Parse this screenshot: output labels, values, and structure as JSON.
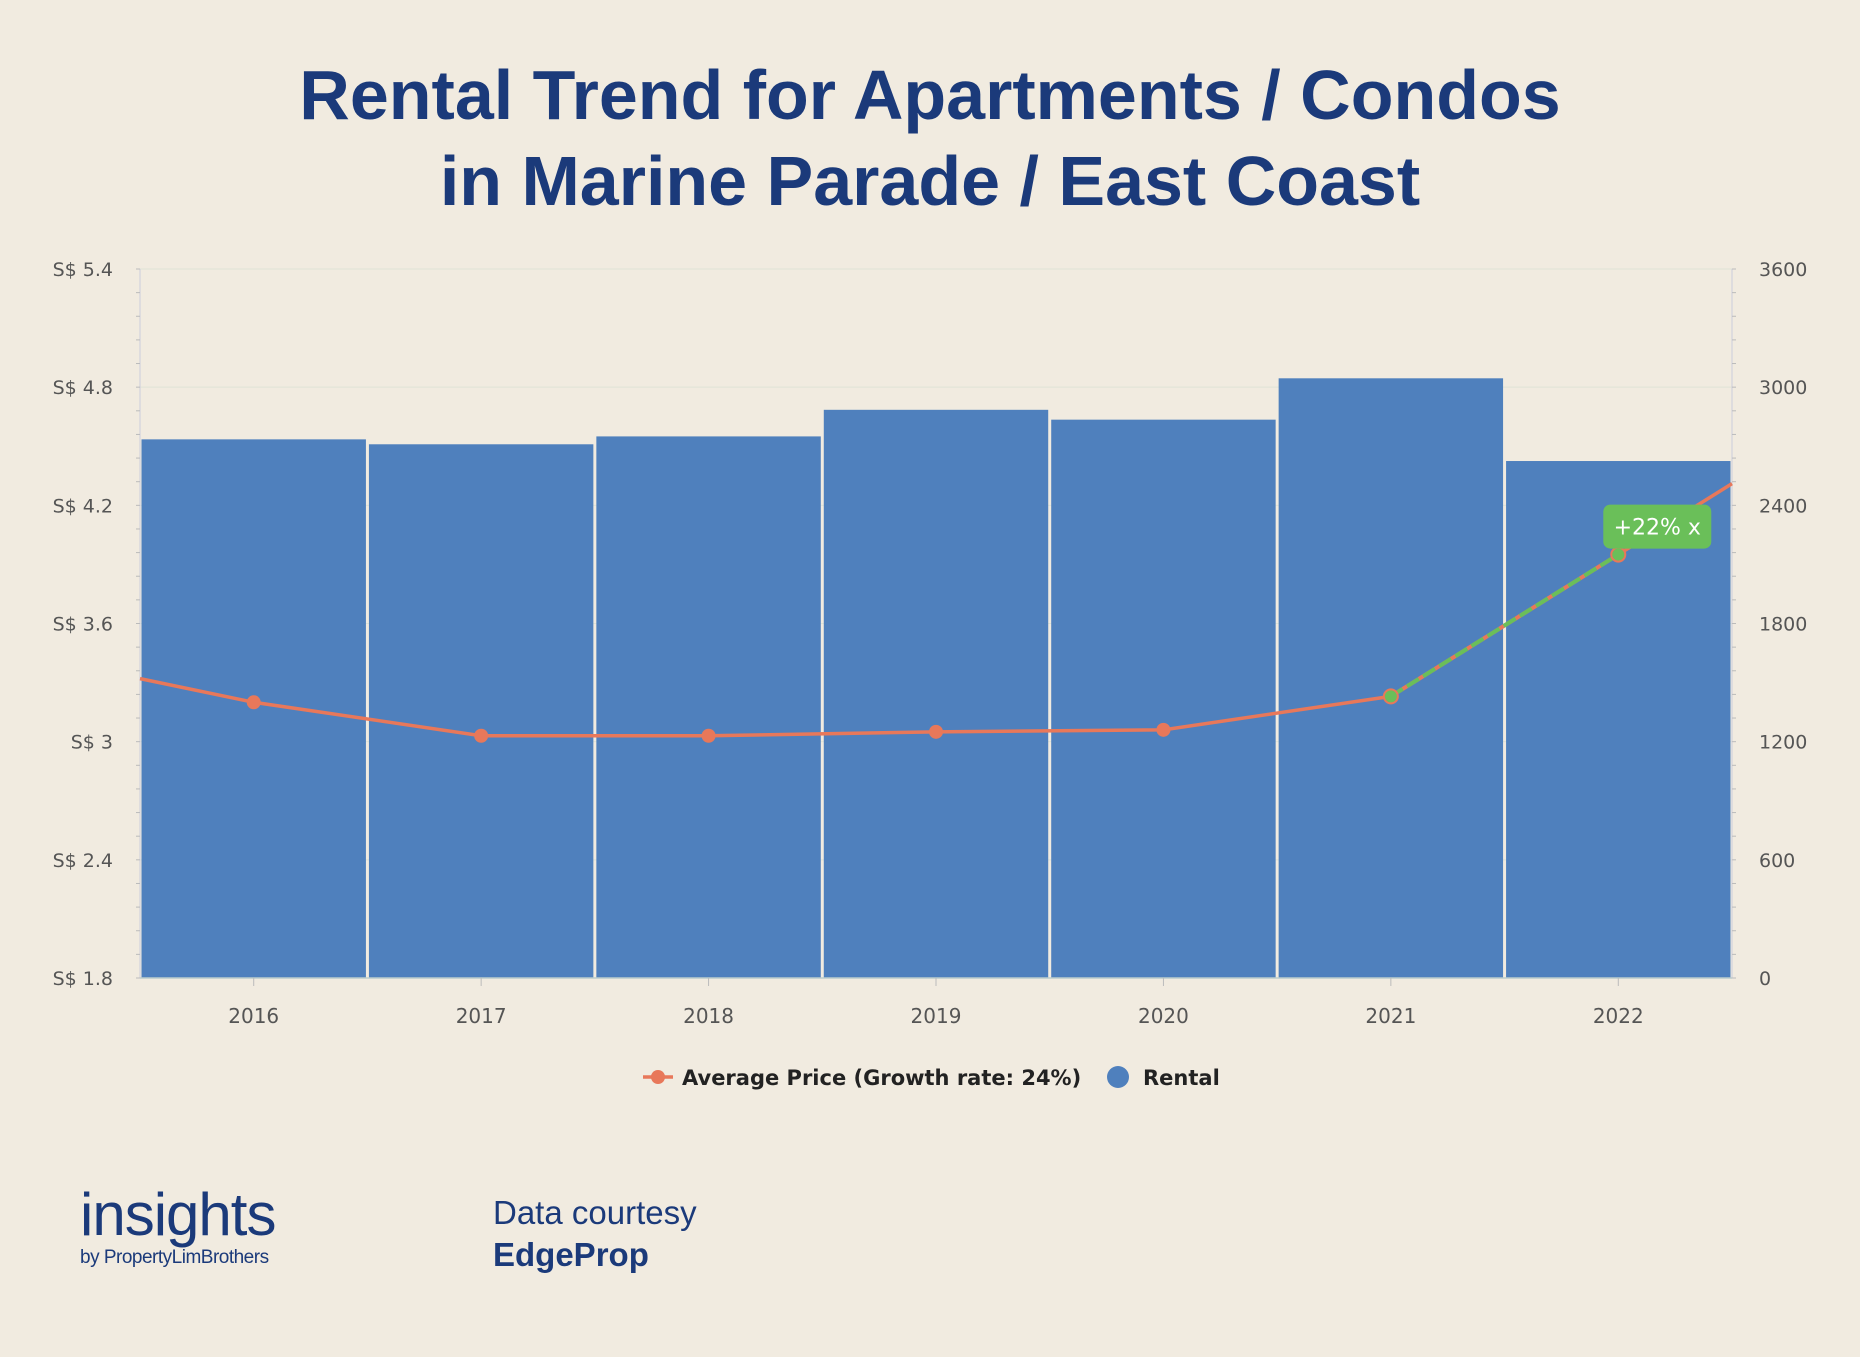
{
  "title_line1": "Rental Trend for Apartments / Condos",
  "title_line2": "in Marine Parade / East Coast",
  "footer": {
    "logo_main": "insights",
    "logo_sub": "by PropertyLimBrothers",
    "credit_label": "Data courtesy",
    "credit_source": "EdgeProp"
  },
  "colors": {
    "bar": "#4f80bd",
    "line": "#e8785a",
    "highlight": "#6abf59",
    "text": "#1b3a7a"
  },
  "chart_data": {
    "type": "bar",
    "categories": [
      "2016",
      "2017",
      "2018",
      "2019",
      "2020",
      "2021",
      "2022"
    ],
    "series": [
      {
        "name": "Rental",
        "type": "bar",
        "axis": "right",
        "values": [
          2735,
          2710,
          2750,
          2885,
          2835,
          3045,
          2625
        ]
      },
      {
        "name": "Average Price (Growth rate: 24%)",
        "type": "line",
        "axis": "left",
        "values": [
          3.2,
          3.03,
          3.03,
          3.05,
          3.06,
          3.23,
          3.95
        ],
        "edge_start": 3.32,
        "edge_end": 4.31
      }
    ],
    "left_axis": {
      "ylim": [
        1.8,
        5.4
      ],
      "ticks": [
        1.8,
        2.4,
        3.0,
        3.6,
        4.2,
        4.8,
        5.4
      ],
      "tick_labels": [
        "S$ 1.8",
        "S$ 2.4",
        "S$ 3",
        "S$ 3.6",
        "S$ 4.2",
        "S$ 4.8",
        "S$ 5.4"
      ]
    },
    "right_axis": {
      "ylim": [
        0,
        3600
      ],
      "ticks": [
        0,
        600,
        1200,
        1800,
        2400,
        3000,
        3600
      ],
      "tick_labels": [
        "0",
        "600",
        "1200",
        "1800",
        "2400",
        "3000",
        "3600"
      ]
    },
    "annotation": {
      "text": "+22% x",
      "from": "2021",
      "to": "2022"
    },
    "legend": [
      "Average Price (Growth rate: 24%)",
      "Rental"
    ],
    "legend_position": "bottom-center"
  }
}
